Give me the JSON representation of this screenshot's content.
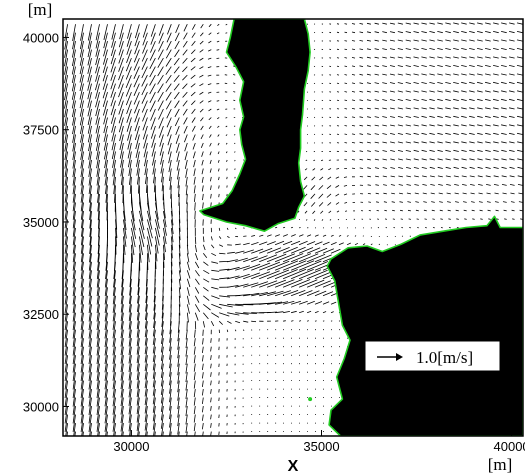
{
  "chart_data": {
    "type": "vector-field",
    "xlabel": "X",
    "x_unit": "[m]",
    "y_unit": "[m]",
    "xlim": [
      28200,
      40300
    ],
    "ylim": [
      29200,
      40500
    ],
    "x_ticks": [
      30000,
      35000,
      40000
    ],
    "y_ticks": [
      30000,
      32500,
      35000,
      37500,
      40000
    ],
    "x_tick_labels": [
      "30000",
      "35000",
      "40000"
    ],
    "y_tick_labels": [
      "30000",
      "32500",
      "35000",
      "37500",
      "40000"
    ],
    "reference_vector": {
      "magnitude": 1.0,
      "label": "1.0[m/s]"
    },
    "land_fill_color": "#000000",
    "coastline_color": "#22cc22",
    "vector_color": "#000000",
    "land_regions": [
      {
        "name": "northern island",
        "outline": [
          [
            32700,
            40500
          ],
          [
            34550,
            40500
          ],
          [
            34650,
            40100
          ],
          [
            34700,
            39600
          ],
          [
            34650,
            39100
          ],
          [
            34550,
            38600
          ],
          [
            34500,
            37900
          ],
          [
            34450,
            37500
          ],
          [
            34450,
            37000
          ],
          [
            34400,
            36600
          ],
          [
            34450,
            36100
          ],
          [
            34550,
            35700
          ],
          [
            34400,
            35400
          ],
          [
            34300,
            35100
          ],
          [
            33850,
            34950
          ],
          [
            33500,
            34750
          ],
          [
            33000,
            34900
          ],
          [
            32500,
            35000
          ],
          [
            31900,
            35200
          ],
          [
            31800,
            35300
          ],
          [
            32400,
            35500
          ],
          [
            32650,
            35850
          ],
          [
            32850,
            36300
          ],
          [
            33000,
            36700
          ],
          [
            32900,
            37100
          ],
          [
            32850,
            37500
          ],
          [
            32950,
            37850
          ],
          [
            32850,
            38300
          ],
          [
            32950,
            38800
          ],
          [
            32750,
            39200
          ],
          [
            32500,
            39600
          ],
          [
            32600,
            40000
          ]
        ]
      },
      {
        "name": "southeastern landmass",
        "outline": [
          [
            35150,
            33800
          ],
          [
            35250,
            34000
          ],
          [
            35700,
            34300
          ],
          [
            36200,
            34350
          ],
          [
            36600,
            34200
          ],
          [
            37100,
            34400
          ],
          [
            37600,
            34650
          ],
          [
            38200,
            34750
          ],
          [
            38800,
            34850
          ],
          [
            39350,
            34900
          ],
          [
            39550,
            35150
          ],
          [
            39700,
            34850
          ],
          [
            40300,
            34850
          ],
          [
            40300,
            29200
          ],
          [
            35500,
            29200
          ],
          [
            35200,
            29500
          ],
          [
            35250,
            29900
          ],
          [
            35550,
            30200
          ],
          [
            35400,
            30800
          ],
          [
            35600,
            31300
          ],
          [
            35750,
            31800
          ],
          [
            35550,
            32200
          ],
          [
            35450,
            32800
          ],
          [
            35350,
            33400
          ]
        ]
      }
    ],
    "isolated_points": [
      [
        34700,
        30200
      ]
    ],
    "flow_features": [
      {
        "name": "eastward jet through strait",
        "x": 34000,
        "y": 33500,
        "u": 0.35,
        "v": 0.15
      },
      {
        "name": "western southward flow",
        "x": 30000,
        "y": 36000,
        "u": -0.05,
        "v": -0.3
      }
    ]
  }
}
